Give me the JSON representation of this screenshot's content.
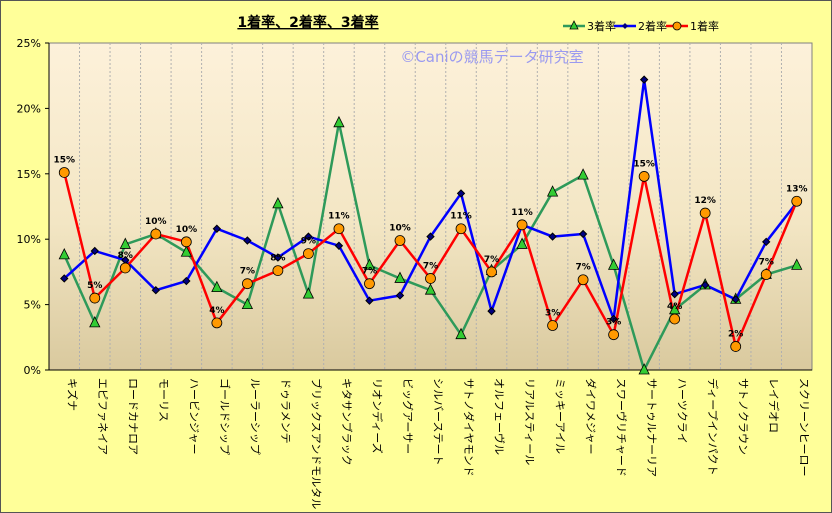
{
  "chart_data": {
    "type": "line",
    "title": "1着率、2着率、3着率",
    "watermark": "©Caniの競馬データ研究室",
    "xlabel": "",
    "ylabel": "",
    "ylim": [
      0,
      25
    ],
    "yticks": [
      "0%",
      "5%",
      "10%",
      "15%",
      "20%",
      "25%"
    ],
    "ytick_values": [
      0,
      5,
      10,
      15,
      20,
      25
    ],
    "grid": "vertical",
    "legend_position": "top-right",
    "categories": [
      "キズナ",
      "エピファネイア",
      "ロードカナロア",
      "モーリス",
      "ハービンジャー",
      "ゴールドシップ",
      "ルーラーシップ",
      "ドゥラメンテ",
      "ブリックスアンドモルタル",
      "キタサンブラック",
      "リオンディーズ",
      "ビッグアーサー",
      "シルバーステート",
      "サトノダイヤモンド",
      "オルフェーヴル",
      "リアルスティール",
      "ミッキーアイル",
      "ダイワメジャー",
      "スワーヴリチャード",
      "サートゥルナーリア",
      "ハーツクライ",
      "ディープインパクト",
      "サトノクラウン",
      "レイデオロ",
      "スクリーンヒーロー"
    ],
    "series": [
      {
        "name": "3着率",
        "color": "#2E9A5A",
        "marker": "triangle",
        "marker_color": "#33CC33",
        "values": [
          8.8,
          3.6,
          9.6,
          10.4,
          9.0,
          6.3,
          5.0,
          12.7,
          5.8,
          18.9,
          8.0,
          7.0,
          6.1,
          2.7,
          7.6,
          9.6,
          13.6,
          14.9,
          8.0,
          0.0,
          4.6,
          6.5,
          5.4,
          7.3,
          8.0
        ]
      },
      {
        "name": "2着率",
        "color": "#0000FF",
        "marker": "diamond",
        "marker_color": "#000080",
        "values": [
          7.0,
          9.1,
          8.4,
          6.1,
          6.8,
          10.8,
          9.9,
          8.6,
          10.2,
          9.5,
          5.3,
          5.7,
          10.2,
          13.5,
          4.5,
          11.1,
          10.2,
          10.4,
          3.9,
          22.2,
          5.8,
          6.5,
          5.4,
          9.8,
          12.8
        ]
      },
      {
        "name": "1着率",
        "color": "#FF0000",
        "marker": "circle",
        "marker_color": "#FF9900",
        "values": [
          15.1,
          5.5,
          7.8,
          10.4,
          9.8,
          3.6,
          6.6,
          7.6,
          8.9,
          10.8,
          6.6,
          9.9,
          7.0,
          10.8,
          7.5,
          11.1,
          3.4,
          6.9,
          2.7,
          14.8,
          3.9,
          12.0,
          1.8,
          7.3,
          12.9
        ],
        "data_labels": [
          "15%",
          "5%",
          "8%",
          "10%",
          "10%",
          "4%",
          "7%",
          "8%",
          "9%",
          "11%",
          "7%",
          "10%",
          "7%",
          "11%",
          "7%",
          "11%",
          "3%",
          "7%",
          "3%",
          "15%",
          "4%",
          "12%",
          "2%",
          "7%",
          "13%"
        ]
      }
    ]
  }
}
